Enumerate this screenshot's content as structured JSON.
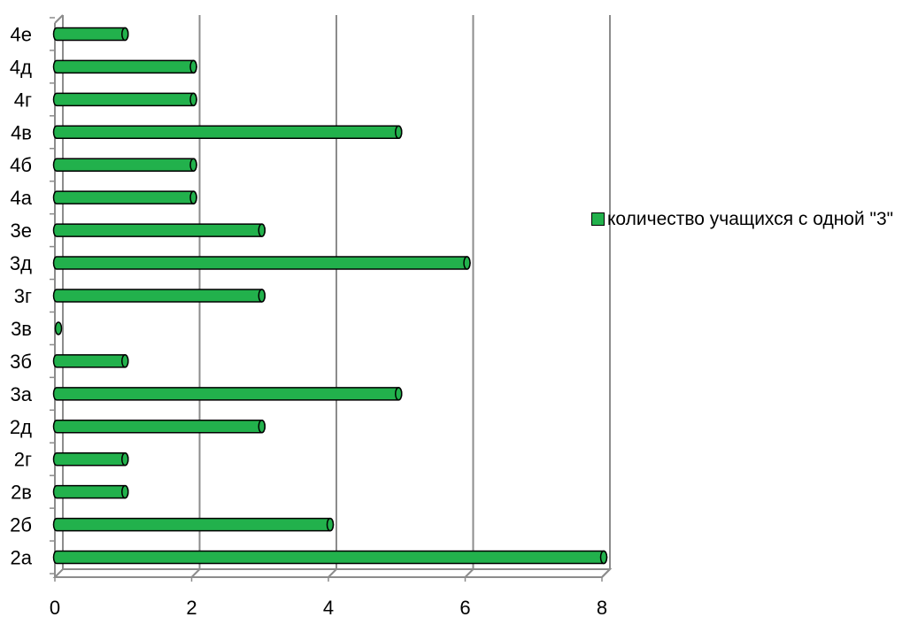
{
  "chart_data": {
    "type": "bar",
    "orientation": "horizontal",
    "categories": [
      "2а",
      "2б",
      "2в",
      "2г",
      "2д",
      "3а",
      "3б",
      "3в",
      "3г",
      "3д",
      "3е",
      "4а",
      "4б",
      "4в",
      "4г",
      "4д",
      "4е"
    ],
    "series": [
      {
        "name": "количество учащихся с одной \"3\"",
        "values": [
          8,
          4,
          1,
          1,
          3,
          5,
          1,
          0,
          3,
          6,
          3,
          2,
          2,
          5,
          2,
          2,
          1
        ],
        "color": "#22b14c"
      }
    ],
    "xlim": [
      0,
      8
    ],
    "x_ticks": [
      "0",
      "2",
      "4",
      "6",
      "8"
    ],
    "grid": true,
    "legend_position": "right",
    "bar_shape": "cylinder",
    "colors": {
      "bar": "#22b14c",
      "bar_edge": "#000000",
      "grid": "#8c8c8c"
    }
  }
}
